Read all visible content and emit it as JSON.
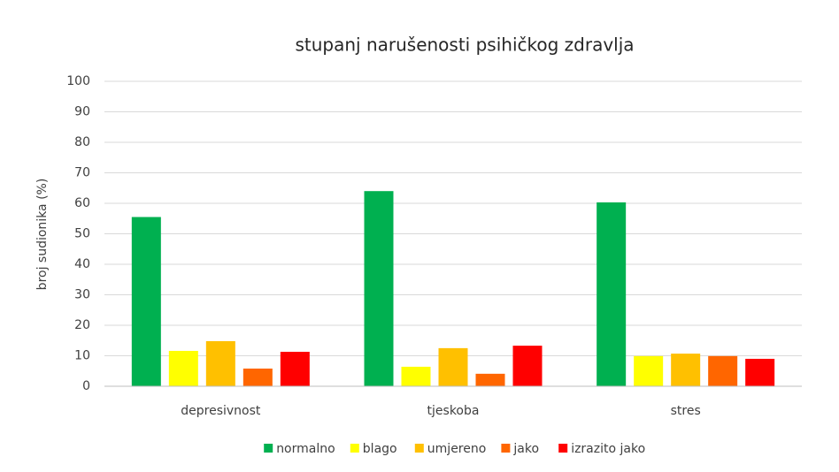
{
  "chart_data": {
    "type": "bar",
    "title": "stupanj narušenosti psihičkog zdravlja",
    "y_label": "broj sudionika (%)",
    "categories": [
      "depresivnost",
      "tjeskoba",
      "stres"
    ],
    "series": [
      {
        "name": "normalno",
        "color": "#00b050",
        "values": [
          55.5,
          64,
          60.3
        ]
      },
      {
        "name": "blago",
        "color": "#ffff00",
        "values": [
          11.6,
          6.4,
          9.9
        ]
      },
      {
        "name": "umjereno",
        "color": "#ffc000",
        "values": [
          14.8,
          12.5,
          10.7
        ]
      },
      {
        "name": "jako",
        "color": "#ff6600",
        "values": [
          5.8,
          4.1,
          9.9
        ]
      },
      {
        "name": "izrazito jako",
        "color": "#ff0000",
        "values": [
          11.3,
          13.3,
          9.0
        ]
      }
    ],
    "ylim": [
      0,
      100
    ],
    "yticks": [
      0,
      10,
      20,
      30,
      40,
      50,
      60,
      70,
      80,
      90,
      100
    ],
    "grid": true,
    "legend": "bottom"
  }
}
